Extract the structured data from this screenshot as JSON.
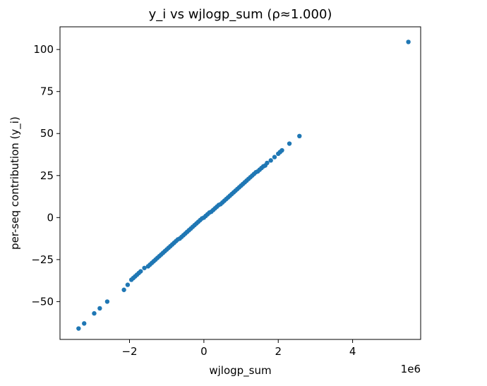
{
  "chart_data": {
    "type": "scatter",
    "title": "y_i vs wjlogp_sum  (ρ≈1.000)",
    "xlabel": "wjlogp_sum",
    "ylabel": "per-seq contribution (y_i)",
    "x_offset_label": "1e6",
    "xlim": [
      -3.87,
      5.83
    ],
    "ylim": [
      -72.5,
      113.5
    ],
    "x_ticks": [
      -2,
      0,
      2,
      4
    ],
    "x_tick_labels": [
      "−2",
      "0",
      "2",
      "4"
    ],
    "y_ticks": [
      -50,
      -25,
      0,
      25,
      50,
      75,
      100
    ],
    "y_tick_labels": [
      "−50",
      "−25",
      "0",
      "25",
      "50",
      "75",
      "100"
    ],
    "grid": false,
    "marker_color": "#1f77b4",
    "series": [
      {
        "x": [
          -3.37,
          -3.22,
          -2.95,
          -2.8,
          -2.6,
          -2.15,
          -2.05,
          -1.95,
          -1.9,
          -1.85,
          -1.8,
          -1.75,
          -1.7,
          -1.6,
          -1.5,
          -1.45,
          -1.4,
          -1.35,
          -1.3,
          -1.25,
          -1.2,
          -1.15,
          -1.1,
          -1.05,
          -1.0,
          -0.95,
          -0.9,
          -0.85,
          -0.8,
          -0.75,
          -0.7,
          -0.65,
          -0.6,
          -0.55,
          -0.5,
          -0.45,
          -0.4,
          -0.35,
          -0.3,
          -0.25,
          -0.2,
          -0.15,
          -0.1,
          -0.05,
          0.0,
          0.05,
          0.1,
          0.15,
          0.2,
          0.25,
          0.3,
          0.35,
          0.4,
          0.45,
          0.5,
          0.55,
          0.6,
          0.65,
          0.7,
          0.75,
          0.8,
          0.85,
          0.9,
          0.95,
          1.0,
          1.05,
          1.1,
          1.15,
          1.2,
          1.25,
          1.3,
          1.35,
          1.4,
          1.45,
          1.5,
          1.55,
          1.6,
          1.65,
          1.7,
          1.8,
          1.9,
          2.0,
          2.05,
          2.1,
          2.3,
          2.57,
          5.5
        ],
        "y": [
          -66,
          -63,
          -57,
          -54,
          -50,
          -43,
          -40,
          -37,
          -36,
          -35,
          -34,
          -33,
          -32,
          -30,
          -29,
          -28,
          -27,
          -26,
          -25,
          -24,
          -23,
          -22,
          -21,
          -20,
          -19,
          -18,
          -17,
          -16,
          -15,
          -14,
          -13,
          -12.5,
          -11.5,
          -10.5,
          -9.5,
          -8.5,
          -7.5,
          -6.5,
          -5.5,
          -4.5,
          -3.5,
          -2.5,
          -1.5,
          -0.5,
          0,
          1,
          2,
          3,
          3.5,
          4.5,
          5.5,
          6.5,
          7.5,
          8,
          9,
          10,
          11,
          12,
          13,
          14,
          15,
          16,
          17,
          18,
          19,
          20,
          21,
          22,
          23,
          24,
          25,
          26,
          27,
          27.5,
          28.5,
          29.5,
          30.5,
          31,
          32.5,
          34,
          36,
          38,
          39,
          40,
          44,
          48.5,
          104.5
        ]
      }
    ]
  }
}
